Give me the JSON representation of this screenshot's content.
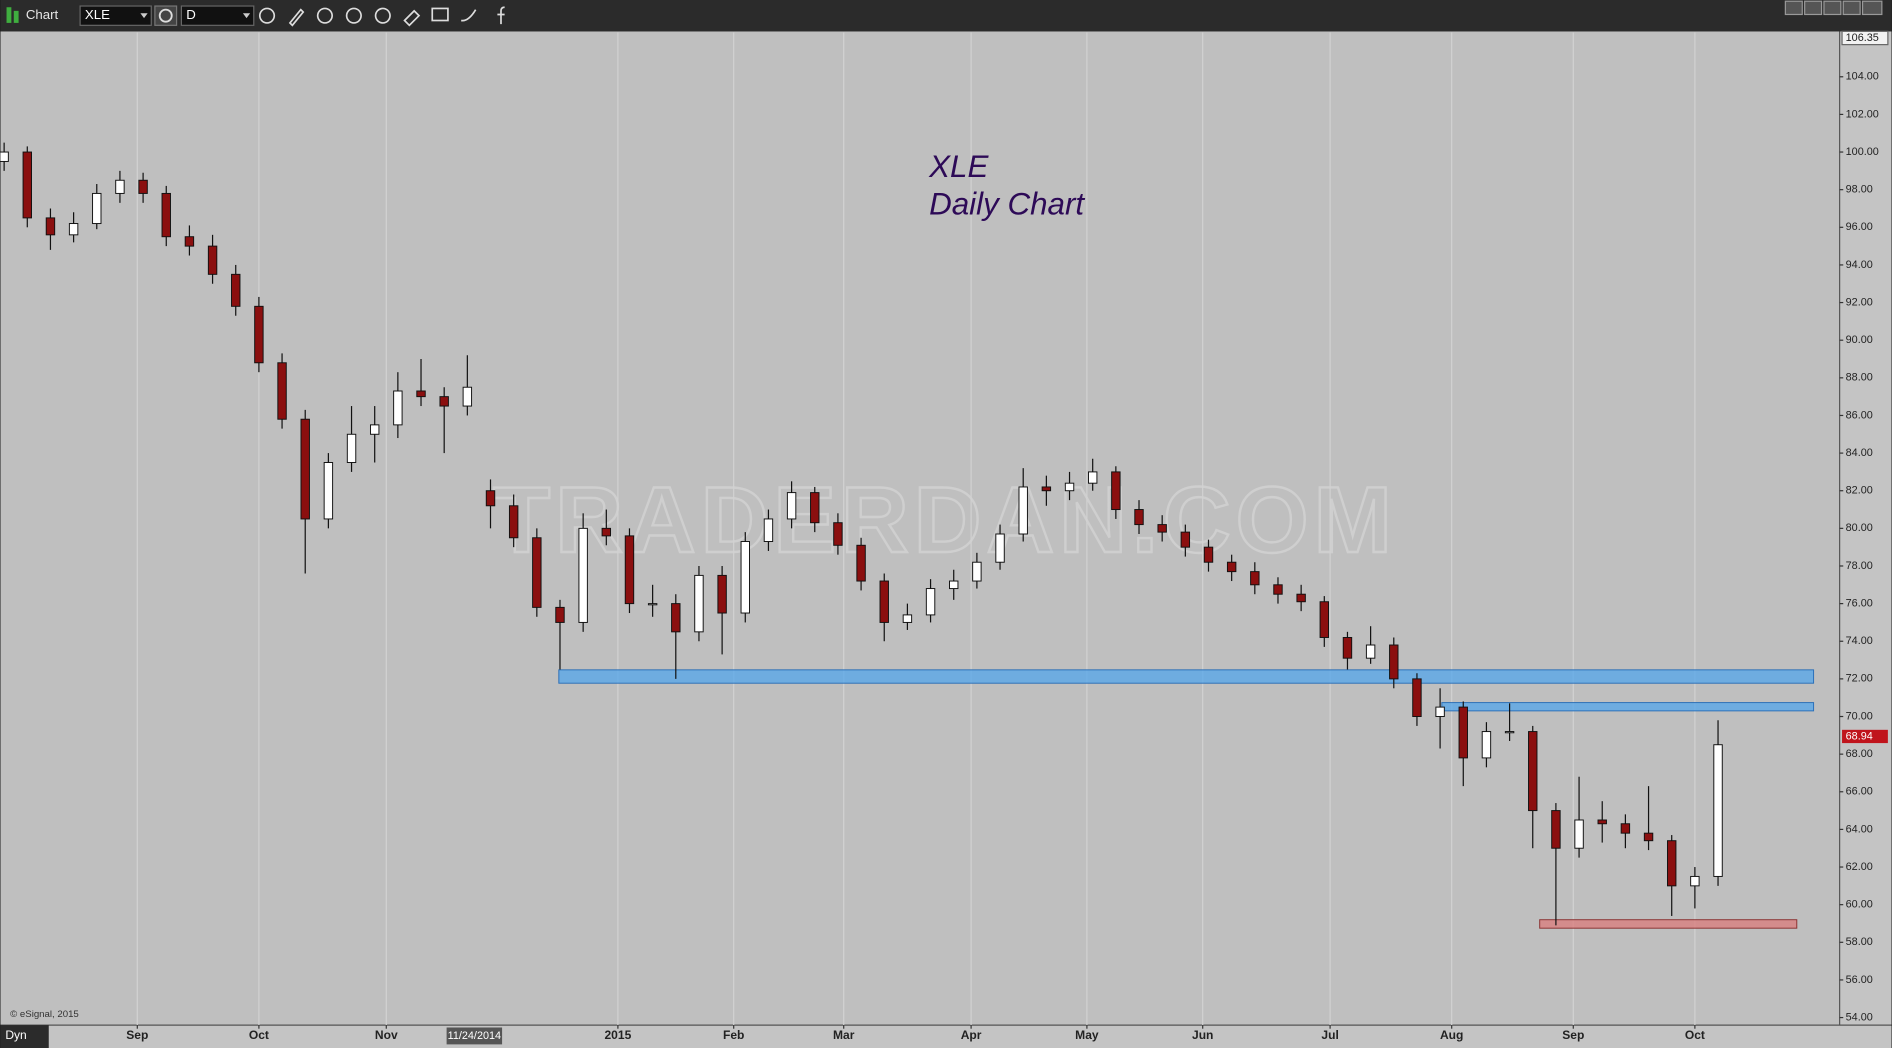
{
  "toolbar": {
    "window_label": "Chart",
    "symbol": "XLE",
    "interval": "D",
    "mode": "Dyn",
    "copyright": "© eSignal, 2015"
  },
  "chart_data": {
    "type": "candlestick",
    "title": "XLE",
    "subtitle": "Daily Chart",
    "watermark": "TRADERDAN.COM",
    "candles": {
      "x": [
        0,
        4,
        8,
        12,
        16,
        20,
        24,
        28,
        32,
        36,
        40,
        44,
        48,
        52,
        56,
        60,
        64,
        68,
        72,
        76,
        80,
        84,
        88,
        92,
        96,
        100,
        104,
        108,
        112,
        116,
        120,
        124,
        128,
        132,
        136,
        140,
        144,
        148,
        152,
        156,
        160,
        164,
        168,
        172,
        176,
        180,
        184,
        188,
        192,
        196,
        200,
        204,
        208,
        212,
        216,
        220,
        224,
        228,
        232,
        236,
        240,
        244,
        248,
        252,
        256,
        260,
        264,
        268,
        272,
        276,
        280,
        284,
        288,
        292,
        296
      ],
      "ohlc": [
        [
          99.5,
          100.5,
          99,
          100
        ],
        [
          100,
          100.3,
          96,
          96.5
        ],
        [
          96.5,
          97,
          94.8,
          95.6
        ],
        [
          95.6,
          96.8,
          95.2,
          96.2
        ],
        [
          96.2,
          98.3,
          95.9,
          97.8
        ],
        [
          97.8,
          99,
          97.3,
          98.5
        ],
        [
          98.5,
          98.9,
          97.3,
          97.8
        ],
        [
          97.8,
          98.2,
          95,
          95.5
        ],
        [
          95.5,
          96.1,
          94.5,
          95
        ],
        [
          95,
          95.6,
          93,
          93.5
        ],
        [
          93.5,
          94,
          91.3,
          91.8
        ],
        [
          91.8,
          92.3,
          88.3,
          88.8
        ],
        [
          88.8,
          89.3,
          85.3,
          85.8
        ],
        [
          85.8,
          86.3,
          77.6,
          80.5
        ],
        [
          80.5,
          84,
          80,
          83.5
        ],
        [
          83.5,
          86.5,
          83,
          85
        ],
        [
          85,
          86.5,
          83.5,
          85.5
        ],
        [
          85.5,
          88.3,
          84.8,
          87.3
        ],
        [
          87.3,
          89,
          86.5,
          87
        ],
        [
          87,
          87.5,
          84,
          86.5
        ],
        [
          86.5,
          89.2,
          86,
          87.5
        ],
        [
          82,
          82.6,
          80,
          81.2
        ],
        [
          81.2,
          81.8,
          79,
          79.5
        ],
        [
          79.5,
          80,
          75.3,
          75.8
        ],
        [
          75.8,
          76.2,
          72.5,
          75
        ],
        [
          75,
          80.8,
          74.5,
          80
        ],
        [
          80,
          81,
          79.1,
          79.6
        ],
        [
          79.6,
          80,
          75.5,
          76
        ],
        [
          76,
          77,
          75.3,
          76
        ],
        [
          76,
          76.5,
          72,
          74.5
        ],
        [
          74.5,
          78,
          74,
          77.5
        ],
        [
          77.5,
          78,
          73.3,
          75.5
        ],
        [
          75.5,
          79.8,
          75,
          79.3
        ],
        [
          79.3,
          81,
          78.8,
          80.5
        ],
        [
          80.5,
          82.5,
          80,
          81.9
        ],
        [
          81.9,
          82.2,
          79.8,
          80.3
        ],
        [
          80.3,
          80.8,
          78.6,
          79.1
        ],
        [
          79.1,
          79.5,
          76.7,
          77.2
        ],
        [
          77.2,
          77.6,
          74,
          75
        ],
        [
          75,
          76,
          74.6,
          75.4
        ],
        [
          75.4,
          77.3,
          75,
          76.8
        ],
        [
          76.8,
          77.8,
          76.2,
          77.2
        ],
        [
          77.2,
          78.7,
          76.8,
          78.2
        ],
        [
          78.2,
          80.2,
          77.8,
          79.7
        ],
        [
          79.7,
          83.2,
          79.3,
          82.2
        ],
        [
          82.2,
          82.8,
          81.2,
          82
        ],
        [
          82,
          83,
          81.5,
          82.4
        ],
        [
          82.4,
          83.7,
          82,
          83
        ],
        [
          83,
          83.3,
          80.5,
          81
        ],
        [
          81,
          81.5,
          79.7,
          80.2
        ],
        [
          80.2,
          80.7,
          79.3,
          79.8
        ],
        [
          79.8,
          80.2,
          78.5,
          79
        ],
        [
          79,
          79.4,
          77.7,
          78.2
        ],
        [
          78.2,
          78.6,
          77.2,
          77.7
        ],
        [
          77.7,
          78.2,
          76.5,
          77
        ],
        [
          77,
          77.4,
          76,
          76.5
        ],
        [
          76.5,
          77,
          75.6,
          76.1
        ],
        [
          76.1,
          76.4,
          73.7,
          74.2
        ],
        [
          74.2,
          74.5,
          72.5,
          73.1
        ],
        [
          73.1,
          74.8,
          72.8,
          73.8
        ],
        [
          73.8,
          74.2,
          71.5,
          72
        ],
        [
          72,
          72.3,
          69.5,
          70
        ],
        [
          70,
          71.5,
          68.3,
          70.5
        ],
        [
          70.5,
          70.8,
          66.3,
          67.8
        ],
        [
          67.8,
          69.7,
          67.3,
          69.2
        ],
        [
          69.2,
          70.7,
          68.7,
          69.2
        ],
        [
          69.2,
          69.5,
          63,
          65
        ],
        [
          65,
          65.4,
          58.9,
          63
        ],
        [
          63,
          66.8,
          62.5,
          64.5
        ],
        [
          64.5,
          65.5,
          63.3,
          64.3
        ],
        [
          64.3,
          64.8,
          63,
          63.8
        ],
        [
          63.8,
          66.3,
          62.9,
          63.4
        ],
        [
          63.4,
          63.7,
          59.4,
          61
        ],
        [
          61,
          62,
          59.8,
          61.5
        ],
        [
          61.5,
          69.8,
          61,
          68.5
        ]
      ],
      "up_color": "#ffffff",
      "down_color": "#8b0f0f"
    },
    "zones": [
      {
        "x0": 95.8,
        "x1": 312.5,
        "y0": 71.77,
        "y1": 72.48,
        "color": "#5aa7e8"
      },
      {
        "x0": 248.3,
        "x1": 312.5,
        "y0": 70.3,
        "y1": 70.74,
        "color": "#5aa7e8"
      },
      {
        "x0": 265.2,
        "x1": 309.6,
        "y0": 58.75,
        "y1": 59.2,
        "color": "#d98080"
      }
    ],
    "last_price": 68.94,
    "cursor": {
      "value": 81,
      "label": "11/24/2014"
    },
    "xlim": [
      0,
      317
    ],
    "ylim": [
      53.6,
      106.35
    ],
    "xticks": [
      {
        "value": 23,
        "label": "Sep"
      },
      {
        "value": 44,
        "label": "Oct"
      },
      {
        "value": 66,
        "label": "Nov"
      },
      {
        "value": 106,
        "label": "2015"
      },
      {
        "value": 126,
        "label": "Feb"
      },
      {
        "value": 145,
        "label": "Mar"
      },
      {
        "value": 167,
        "label": "Apr"
      },
      {
        "value": 187,
        "label": "May"
      },
      {
        "value": 207,
        "label": "Jun"
      },
      {
        "value": 229,
        "label": "Jul"
      },
      {
        "value": 250,
        "label": "Aug"
      },
      {
        "value": 271,
        "label": "Sep"
      },
      {
        "value": 292,
        "label": "Oct"
      }
    ],
    "yticks": [
      {
        "value": 54,
        "label": "54.00"
      },
      {
        "value": 56,
        "label": "56.00"
      },
      {
        "value": 58,
        "label": "58.00"
      },
      {
        "value": 60,
        "label": "60.00"
      },
      {
        "value": 62,
        "label": "62.00"
      },
      {
        "value": 64,
        "label": "64.00"
      },
      {
        "value": 66,
        "label": "66.00"
      },
      {
        "value": 68,
        "label": "68.00"
      },
      {
        "value": 70,
        "label": "70.00"
      },
      {
        "value": 72,
        "label": "72.00"
      },
      {
        "value": 74,
        "label": "74.00"
      },
      {
        "value": 76,
        "label": "76.00"
      },
      {
        "value": 78,
        "label": "78.00"
      },
      {
        "value": 80,
        "label": "80.00"
      },
      {
        "value": 82,
        "label": "82.00"
      },
      {
        "value": 84,
        "label": "84.00"
      },
      {
        "value": 86,
        "label": "86.00"
      },
      {
        "value": 88,
        "label": "88.00"
      },
      {
        "value": 90,
        "label": "90.00"
      },
      {
        "value": 92,
        "label": "92.00"
      },
      {
        "value": 94,
        "label": "94.00"
      },
      {
        "value": 96,
        "label": "96.00"
      },
      {
        "value": 98,
        "label": "98.00"
      },
      {
        "value": 100,
        "label": "100.00"
      },
      {
        "value": 102,
        "label": "102.00"
      },
      {
        "value": 104,
        "label": "104.00"
      }
    ],
    "grid": "x",
    "background": "#bfbfbf"
  }
}
